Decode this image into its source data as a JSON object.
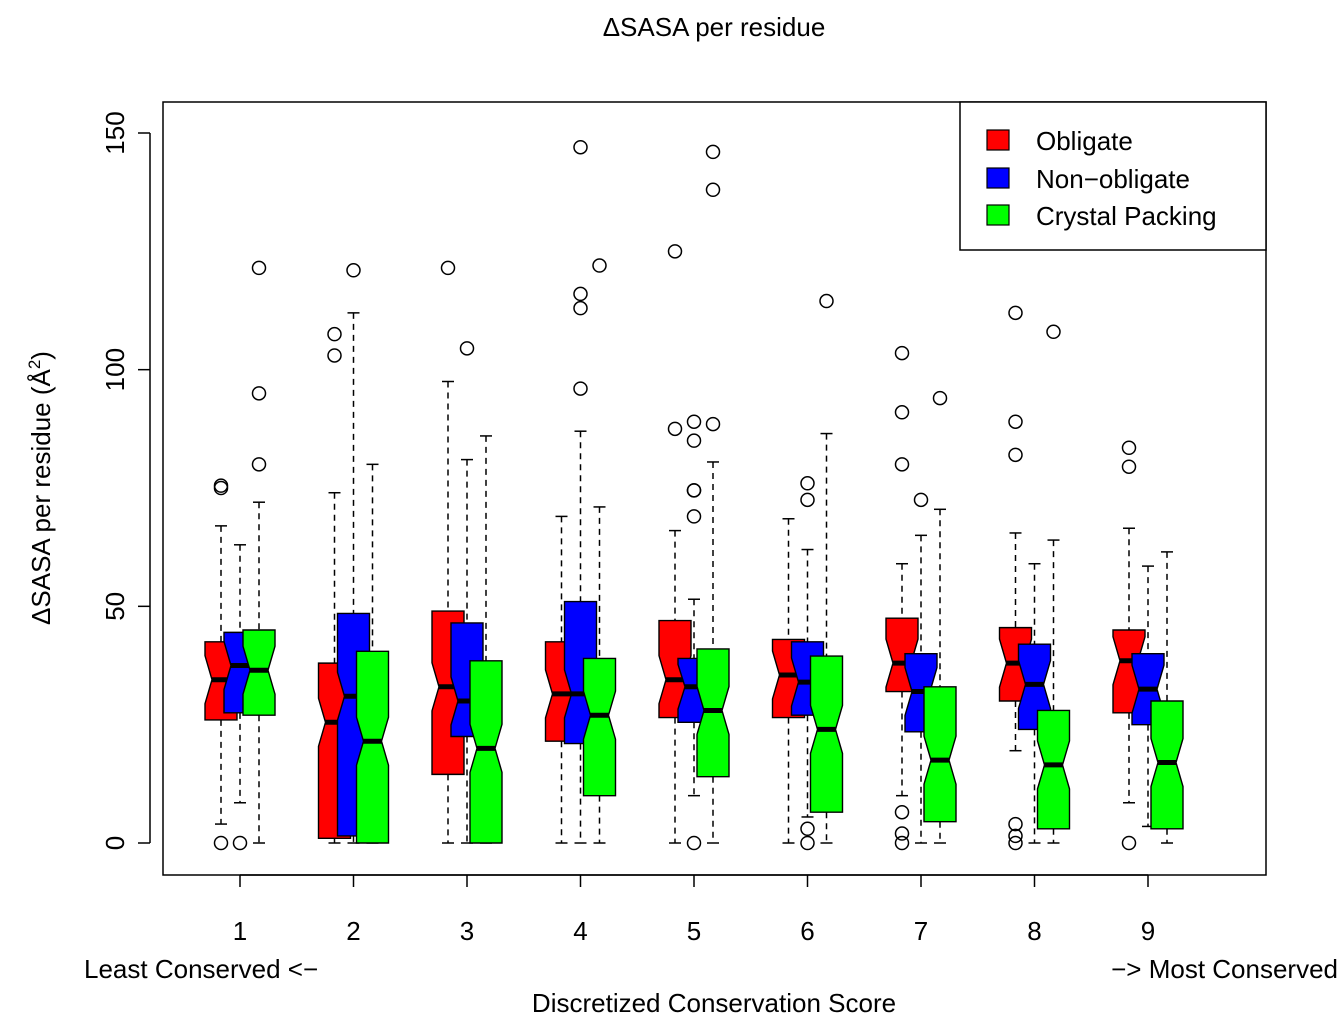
{
  "chart_data": {
    "type": "boxplot",
    "title": "ΔSASA per residue",
    "ylabel_main": "ΔSASA per residue (Å",
    "ylabel_sup": "2",
    "ylabel_close": ")",
    "xlabel": "Discretized Conservation Score",
    "xnote_left": "Least Conserved <−",
    "xnote_right": "−> Most Conserved",
    "ylim": [
      -12,
      156
    ],
    "yticks": [
      0,
      50,
      100,
      150
    ],
    "categories": [
      "1",
      "2",
      "3",
      "4",
      "5",
      "6",
      "7",
      "8",
      "9"
    ],
    "legend_position": "top-right",
    "notched": true,
    "series": [
      {
        "name": "Obligate",
        "color": "#ff0000",
        "boxes": [
          {
            "q1": 26,
            "median": 34.5,
            "q3": 42.5,
            "whisker_low": 4,
            "whisker_high": 67,
            "outliers": [
              75,
              75.5,
              0
            ]
          },
          {
            "q1": 1,
            "median": 25.5,
            "q3": 38,
            "whisker_low": 0,
            "whisker_high": 74,
            "outliers": [
              103,
              107.5
            ]
          },
          {
            "q1": 14.5,
            "median": 33,
            "q3": 49,
            "whisker_low": 0,
            "whisker_high": 97.5,
            "outliers": [
              121.5
            ]
          },
          {
            "q1": 21.5,
            "median": 31.5,
            "q3": 42.5,
            "whisker_low": 0,
            "whisker_high": 69,
            "outliers": []
          },
          {
            "q1": 26.5,
            "median": 34.5,
            "q3": 47,
            "whisker_low": 0,
            "whisker_high": 66,
            "outliers": [
              87.5,
              125
            ]
          },
          {
            "q1": 26.5,
            "median": 35.5,
            "q3": 43,
            "whisker_low": 0,
            "whisker_high": 68.5,
            "outliers": []
          },
          {
            "q1": 32,
            "median": 38,
            "q3": 47.5,
            "whisker_low": 10,
            "whisker_high": 59,
            "outliers": [
              80,
              91,
              103.5,
              6.5,
              2,
              0
            ]
          },
          {
            "q1": 30,
            "median": 38,
            "q3": 45.5,
            "whisker_low": 19.5,
            "whisker_high": 65.5,
            "outliers": [
              82,
              89,
              112,
              4,
              1.5,
              0
            ]
          },
          {
            "q1": 27.5,
            "median": 38.5,
            "q3": 45,
            "whisker_low": 8.5,
            "whisker_high": 66.5,
            "outliers": [
              79.5,
              83.5,
              0
            ]
          }
        ]
      },
      {
        "name": "Non−obligate",
        "color": "#0000ff",
        "boxes": [
          {
            "q1": 27.5,
            "median": 37.5,
            "q3": 44.5,
            "whisker_low": 8.5,
            "whisker_high": 63,
            "outliers": [
              0
            ]
          },
          {
            "q1": 1.5,
            "median": 31,
            "q3": 48.5,
            "whisker_low": 0,
            "whisker_high": 112,
            "outliers": [
              121
            ]
          },
          {
            "q1": 22.5,
            "median": 30,
            "q3": 46.5,
            "whisker_low": 0,
            "whisker_high": 81,
            "outliers": [
              104.5
            ]
          },
          {
            "q1": 21,
            "median": 31.5,
            "q3": 51,
            "whisker_low": 0,
            "whisker_high": 87,
            "outliers": [
              96,
              113,
              116,
              147
            ]
          },
          {
            "q1": 25.5,
            "median": 33,
            "q3": 39,
            "whisker_low": 10,
            "whisker_high": 51.5,
            "outliers": [
              69,
              74.5,
              74.5,
              85,
              89,
              0
            ]
          },
          {
            "q1": 27,
            "median": 34,
            "q3": 42.5,
            "whisker_low": 5.5,
            "whisker_high": 62,
            "outliers": [
              72.5,
              76,
              3,
              0
            ]
          },
          {
            "q1": 23.5,
            "median": 32,
            "q3": 40,
            "whisker_low": 0,
            "whisker_high": 65,
            "outliers": [
              72.5
            ]
          },
          {
            "q1": 24,
            "median": 33.5,
            "q3": 42,
            "whisker_low": 0,
            "whisker_high": 59,
            "outliers": []
          },
          {
            "q1": 25,
            "median": 32.5,
            "q3": 40,
            "whisker_low": 3.5,
            "whisker_high": 58.5,
            "outliers": []
          }
        ]
      },
      {
        "name": "Crystal Packing",
        "color": "#00ff00",
        "boxes": [
          {
            "q1": 27,
            "median": 36.5,
            "q3": 45,
            "whisker_low": 0,
            "whisker_high": 72,
            "outliers": [
              80,
              95,
              121.5
            ]
          },
          {
            "q1": 0,
            "median": 21.5,
            "q3": 40.5,
            "whisker_low": 0,
            "whisker_high": 80,
            "outliers": []
          },
          {
            "q1": 0,
            "median": 20,
            "q3": 38.5,
            "whisker_low": 0,
            "whisker_high": 86,
            "outliers": []
          },
          {
            "q1": 10,
            "median": 27,
            "q3": 39,
            "whisker_low": 0,
            "whisker_high": 71,
            "outliers": [
              122
            ]
          },
          {
            "q1": 14,
            "median": 28,
            "q3": 41,
            "whisker_low": 0,
            "whisker_high": 80.5,
            "outliers": [
              88.5,
              138,
              146
            ]
          },
          {
            "q1": 6.5,
            "median": 24,
            "q3": 39.5,
            "whisker_low": 0,
            "whisker_high": 86.5,
            "outliers": [
              114.5
            ]
          },
          {
            "q1": 4.5,
            "median": 17.5,
            "q3": 33,
            "whisker_low": 0,
            "whisker_high": 70.5,
            "outliers": [
              94
            ]
          },
          {
            "q1": 3,
            "median": 16.5,
            "q3": 28,
            "whisker_low": 0,
            "whisker_high": 64,
            "outliers": [
              108
            ]
          },
          {
            "q1": 3,
            "median": 17,
            "q3": 30,
            "whisker_low": 0,
            "whisker_high": 61.5,
            "outliers": []
          }
        ]
      }
    ]
  }
}
